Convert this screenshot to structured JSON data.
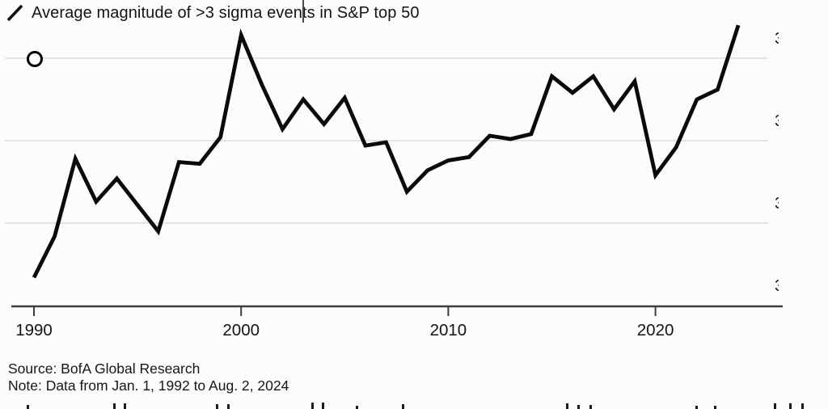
{
  "legend": {
    "series_label": "Average magnitude of >3 sigma events in S&P top 50"
  },
  "footer": {
    "source": "Source: BofA Global Research",
    "note": "Note: Data from Jan. 1, 1992 to Aug. 2, 2024"
  },
  "colors": {
    "background": "#fcfcfa",
    "line": "#0a0a0a",
    "grid": "#dcdcdc",
    "axis": "#3c3c3c",
    "text": "#141414"
  },
  "chart_data": {
    "type": "line",
    "title": "Average magnitude of >3 sigma events in S&P top 50",
    "xlabel": "",
    "ylabel": "",
    "grid": "horizontal",
    "legend_position": "top-left",
    "xlim": [
      1989,
      2026
    ],
    "ylim": [
      3.0,
      4.75
    ],
    "x": [
      1990,
      1991,
      1992,
      1993,
      1994,
      1995,
      1996,
      1997,
      1998,
      1999,
      2000,
      2001,
      2002,
      2003,
      2004,
      2005,
      2006,
      2007,
      2008,
      2009,
      2010,
      2011,
      2012,
      2013,
      2014,
      2015,
      2016,
      2017,
      2018,
      2019,
      2020,
      2021,
      2022,
      2023,
      2024
    ],
    "values": [
      3.17,
      3.42,
      3.89,
      3.63,
      3.77,
      3.61,
      3.45,
      3.87,
      3.86,
      4.02,
      4.64,
      4.34,
      4.07,
      4.25,
      4.1,
      4.26,
      3.97,
      3.99,
      3.69,
      3.82,
      3.88,
      3.9,
      4.03,
      4.01,
      4.04,
      4.39,
      4.29,
      4.39,
      4.19,
      4.36,
      3.79,
      3.96,
      4.25,
      4.31,
      4.7
    ],
    "x_tick_years": [
      1990,
      2000,
      2010,
      2020
    ],
    "x_tick_labels": [
      "1990",
      "2000",
      "2010",
      "2020"
    ],
    "y_gridline_values": [
      4.5,
      4.0,
      3.5
    ],
    "y_fragment_levels": [
      4.5,
      4.0,
      3.5,
      3.0
    ],
    "y_axis_label_fragments": [
      "3",
      "3",
      "3",
      "3"
    ]
  },
  "annotations": {
    "circle_marker": {
      "year": 1990,
      "value": 4.5
    }
  }
}
